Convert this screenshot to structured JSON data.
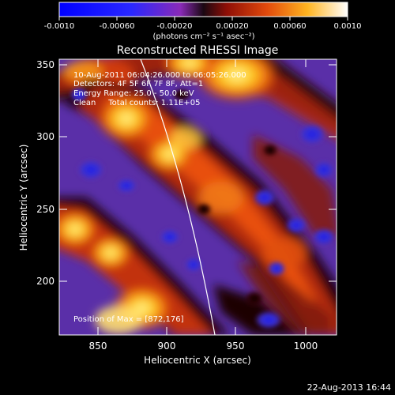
{
  "colorbar": {
    "ticks": [
      "-0.0010",
      "-0.00060",
      "-0.00020",
      "0.00020",
      "0.00060",
      "0.0010"
    ],
    "unit_label": "(photons cm⁻² s⁻¹ asec⁻²)"
  },
  "plot": {
    "title": "Reconstructed RHESSI Image",
    "xlabel": "Heliocentric X (arcsec)",
    "ylabel": "Heliocentric Y (arcsec)",
    "xticks": [
      "850",
      "900",
      "950",
      "1000"
    ],
    "yticks": [
      "200",
      "250",
      "300",
      "350"
    ],
    "xlim": [
      822,
      1013
    ],
    "ylim": [
      160,
      356
    ]
  },
  "annotations": {
    "time_range": "10-Aug-2011 06:04:26.000 to 06:05:26.000",
    "detectors": "Detectors: 4F 5F 6F 7F 8F, Att=1",
    "energy": "Energy Range: 25.0 - 50.0 keV",
    "clean": "Clean     Total counts: 1.11E+05",
    "position": "Position of Max = [872,176]"
  },
  "footer": {
    "timestamp": "22-Aug-2013 16:44"
  },
  "colors": {
    "background": "#000000",
    "text": "#ffffff",
    "limb": "#ffffff"
  }
}
